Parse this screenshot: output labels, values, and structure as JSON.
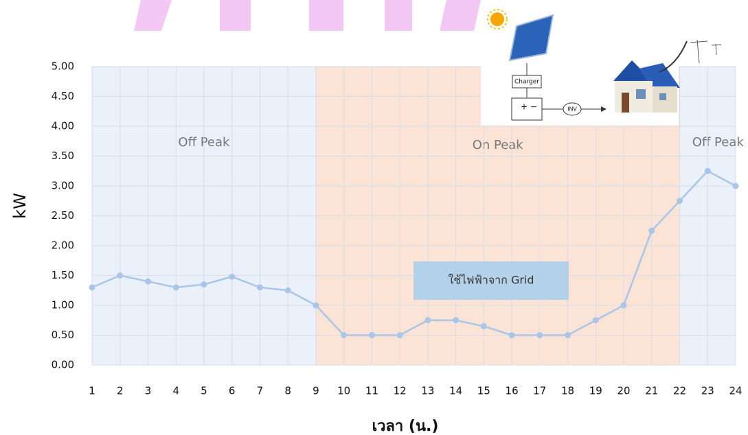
{
  "chart_data": {
    "type": "line",
    "x_label": "เวลา (น.)",
    "y_label": "kW",
    "x": [
      1,
      2,
      3,
      4,
      5,
      6,
      7,
      8,
      9,
      10,
      11,
      12,
      13,
      14,
      15,
      16,
      17,
      18,
      19,
      20,
      21,
      22,
      23,
      24
    ],
    "series": [
      {
        "name": "kW",
        "color": "#a9c5e8",
        "values": [
          1.3,
          1.5,
          1.4,
          1.3,
          1.35,
          1.48,
          1.3,
          1.25,
          1.0,
          0.5,
          0.5,
          0.5,
          0.75,
          0.75,
          0.65,
          0.5,
          0.5,
          0.5,
          0.75,
          1.0,
          2.25,
          2.75,
          3.25,
          3.0
        ]
      }
    ],
    "xlim": [
      1,
      24
    ],
    "xticks": [
      1,
      2,
      3,
      4,
      5,
      6,
      7,
      8,
      9,
      10,
      11,
      12,
      13,
      14,
      15,
      16,
      17,
      18,
      19,
      20,
      21,
      22,
      23,
      24
    ],
    "ylim": [
      0,
      5
    ],
    "yticks": [
      {
        "value": 0,
        "label": "0.00"
      },
      {
        "value": 0.5,
        "label": "0.50"
      },
      {
        "value": 1,
        "label": "1.00"
      },
      {
        "value": 1.5,
        "label": "1.50"
      },
      {
        "value": 2,
        "label": "2.00"
      },
      {
        "value": 2.5,
        "label": "2.50"
      },
      {
        "value": 3,
        "label": "3.00"
      },
      {
        "value": 3.5,
        "label": "3.50"
      },
      {
        "value": 4,
        "label": "4.00"
      },
      {
        "value": 4.5,
        "label": "4.50"
      },
      {
        "value": 5,
        "label": "5.00"
      }
    ],
    "grid": true,
    "regions": [
      {
        "label": "Off Peak",
        "start": 1,
        "end": 9,
        "color": "#eaf1fb"
      },
      {
        "label": "On Peak",
        "start": 9,
        "end": 22,
        "color": "#fbe3d6"
      },
      {
        "label": "Off Peak",
        "start": 22,
        "end": 24,
        "color": "#eaf1fb"
      }
    ],
    "annotation": "ใช้ไฟฟ้าจาก Grid",
    "inset_labels": [
      "Charger",
      "INV"
    ]
  }
}
